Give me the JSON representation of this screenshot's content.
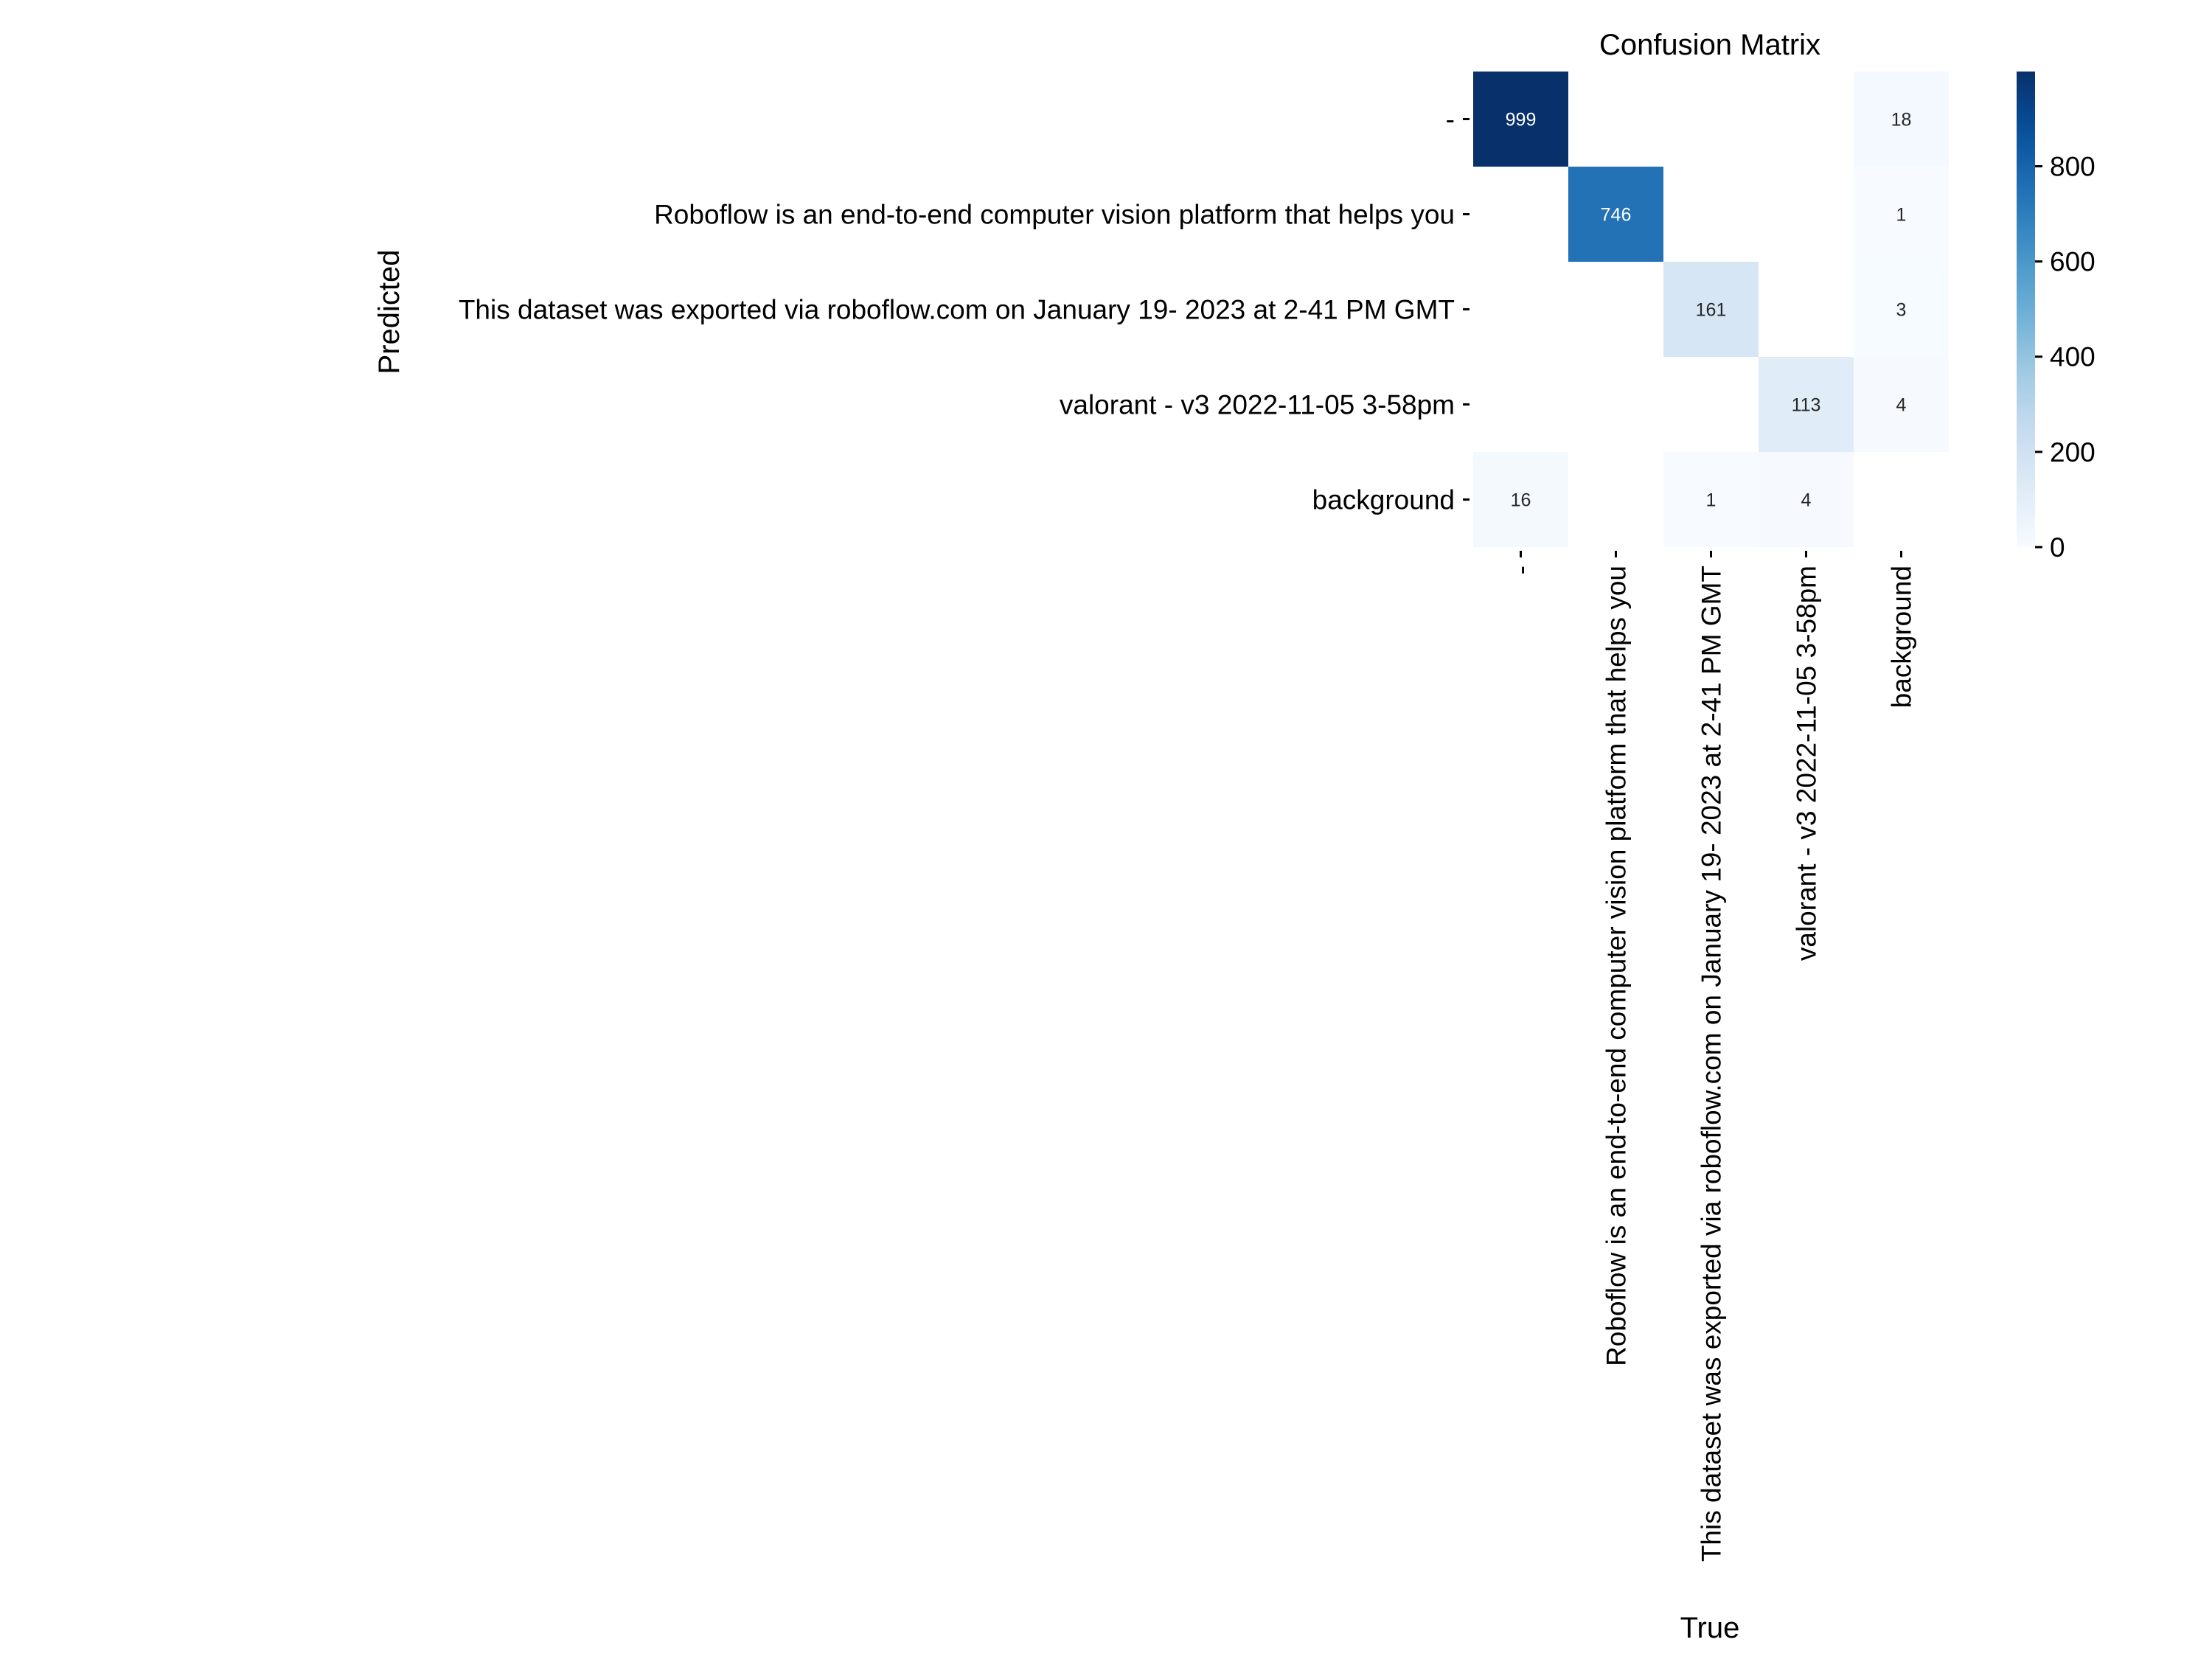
{
  "chart_data": {
    "type": "heatmap",
    "title": "Confusion Matrix",
    "xlabel": "True",
    "ylabel": "Predicted",
    "x_categories": [
      "-",
      "Roboflow is an end-to-end computer vision platform that helps you",
      "This dataset was exported via roboflow.com on January 19- 2023 at 2-41 PM GMT",
      "valorant - v3 2022-11-05 3-58pm",
      "background"
    ],
    "y_categories": [
      "-",
      "Roboflow is an end-to-end computer vision platform that helps you",
      "This dataset was exported via roboflow.com on January 19- 2023 at 2-41 PM GMT",
      "valorant - v3 2022-11-05 3-58pm",
      "background"
    ],
    "values": [
      [
        999,
        null,
        null,
        null,
        18
      ],
      [
        null,
        746,
        null,
        null,
        1
      ],
      [
        null,
        null,
        161,
        null,
        3
      ],
      [
        null,
        null,
        null,
        113,
        4
      ],
      [
        16,
        null,
        1,
        4,
        null
      ]
    ],
    "colorbar": {
      "colormap": "Blues",
      "vmin": 0,
      "vmax": 999,
      "ticks": [
        0,
        200,
        400,
        600,
        800
      ]
    }
  }
}
